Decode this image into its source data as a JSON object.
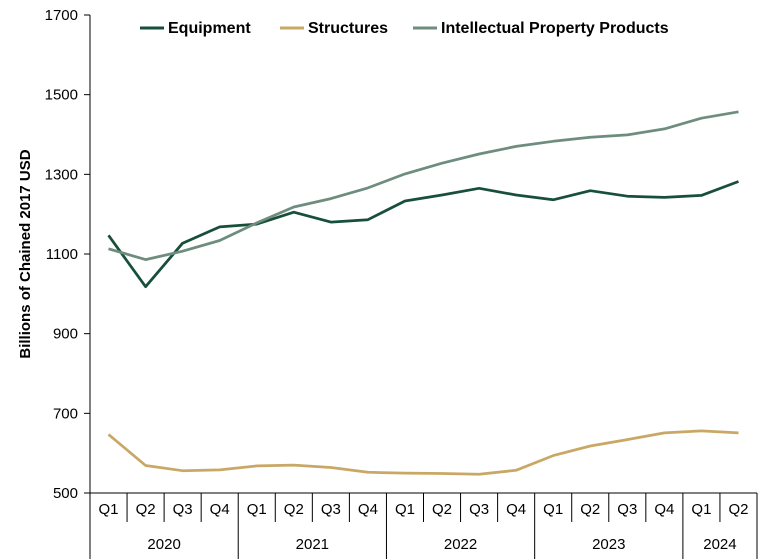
{
  "chart_data": {
    "type": "line",
    "ylabel": "Billions of Chained 2017 USD",
    "xlabel": "",
    "ylim": [
      500,
      1700
    ],
    "yticks": [
      500,
      700,
      900,
      1100,
      1300,
      1500,
      1700
    ],
    "legend_position": "top",
    "grid": false,
    "quarters": [
      "Q1",
      "Q2",
      "Q3",
      "Q4",
      "Q1",
      "Q2",
      "Q3",
      "Q4",
      "Q1",
      "Q2",
      "Q3",
      "Q4",
      "Q1",
      "Q2",
      "Q3",
      "Q4",
      "Q1",
      "Q2"
    ],
    "years": [
      {
        "label": "2020",
        "count": 4
      },
      {
        "label": "2021",
        "count": 4
      },
      {
        "label": "2022",
        "count": 4
      },
      {
        "label": "2023",
        "count": 4
      },
      {
        "label": "2024",
        "count": 2
      }
    ],
    "series": [
      {
        "name": "Equipment",
        "color": "#174f3a",
        "values": [
          1147,
          1018,
          1127,
          1168,
          1175,
          1205,
          1180,
          1186,
          1233,
          1248,
          1265,
          1248,
          1236,
          1259,
          1245,
          1242,
          1247,
          1282
        ]
      },
      {
        "name": "Structures",
        "color": "#c9a866",
        "values": [
          647,
          569,
          556,
          558,
          568,
          570,
          564,
          552,
          550,
          549,
          547,
          557,
          594,
          618,
          634,
          651,
          656,
          651
        ]
      },
      {
        "name": "Intellectual Property Products",
        "color": "#6e8d7e",
        "values": [
          1113,
          1086,
          1107,
          1134,
          1178,
          1218,
          1239,
          1266,
          1301,
          1328,
          1351,
          1370,
          1383,
          1393,
          1399,
          1414,
          1441,
          1457
        ]
      }
    ]
  }
}
